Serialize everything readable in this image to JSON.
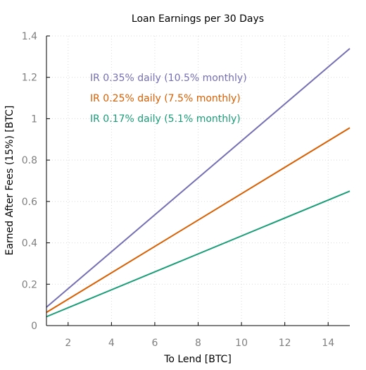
{
  "chart_data": {
    "type": "line",
    "title": "Loan Earnings per 30 Days",
    "xlabel": "To Lend [BTC]",
    "ylabel": "Earned After Fees (15%) [BTC]",
    "xlim": [
      1,
      15
    ],
    "ylim": [
      0,
      1.4
    ],
    "xticks": [
      2,
      4,
      6,
      8,
      10,
      12,
      14
    ],
    "yticks": [
      0,
      0.2,
      0.4,
      0.6,
      0.8,
      1,
      1.2,
      1.4
    ],
    "ytick_labels": [
      "0",
      "0.2",
      "0.4",
      "0.6",
      "0.8",
      "1",
      "1.2",
      "1.4"
    ],
    "grid": true,
    "legend_placement": "top-left",
    "series": [
      {
        "name": "IR 0.35% daily (10.5% monthly)",
        "color": "#7570b3",
        "x": [
          1,
          15
        ],
        "y": [
          0.089,
          1.339
        ]
      },
      {
        "name": "IR 0.25% daily (7.5% monthly)",
        "color": "#d95f02",
        "x": [
          1,
          15
        ],
        "y": [
          0.064,
          0.956
        ]
      },
      {
        "name": "IR 0.17% daily (5.1% monthly)",
        "color": "#1b9e77",
        "x": [
          1,
          15
        ],
        "y": [
          0.043,
          0.65
        ]
      }
    ]
  }
}
